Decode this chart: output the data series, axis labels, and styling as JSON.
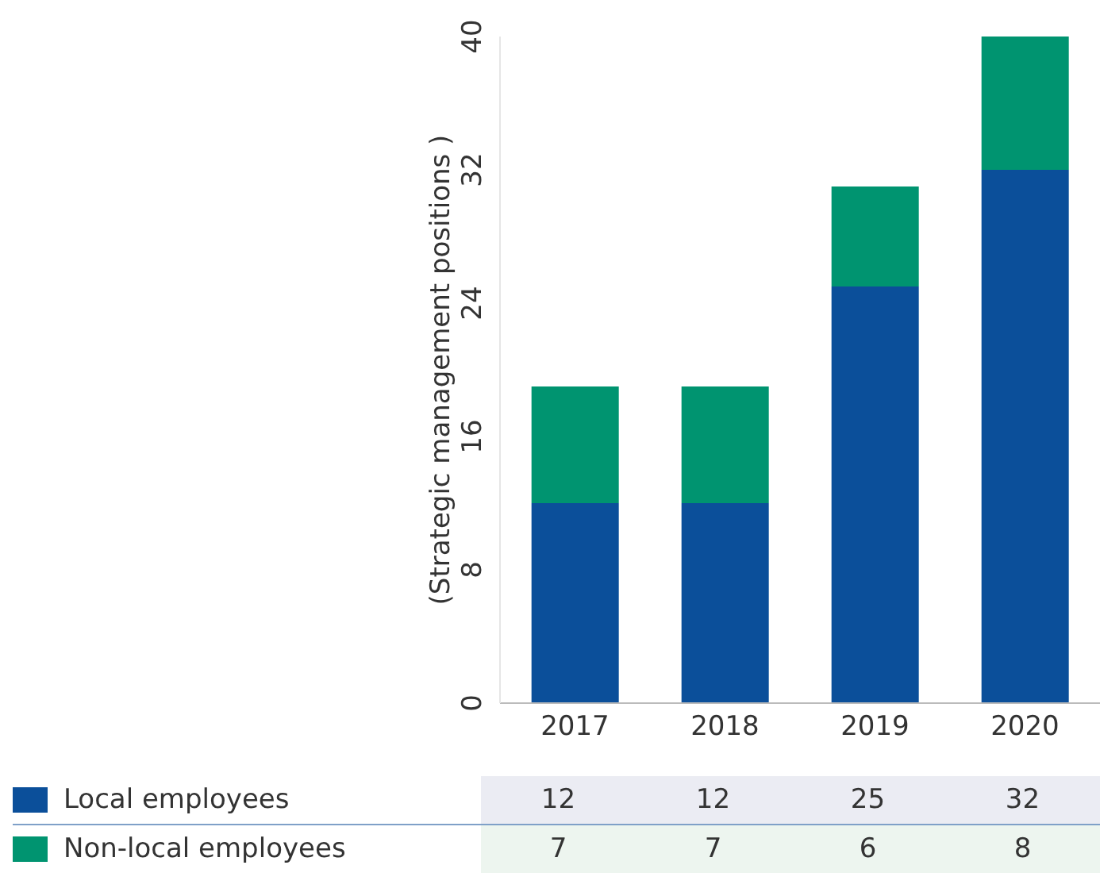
{
  "chart_data": {
    "type": "bar",
    "ylabel": "(Strategic management positions )",
    "categories": [
      "2017",
      "2018",
      "2019",
      "2020"
    ],
    "stacked": true,
    "ylim": [
      0,
      40
    ],
    "yticks": [
      0,
      8,
      16,
      24,
      32,
      40
    ],
    "legend": "bottom",
    "data_labels": true,
    "grid": false,
    "series": [
      {
        "name": "Local employees",
        "color": "#0b4f9a",
        "values": [
          12,
          12,
          25,
          32
        ]
      },
      {
        "name": "Non-local employees",
        "color": "#009470",
        "values": [
          7,
          7,
          6,
          8
        ]
      }
    ]
  }
}
